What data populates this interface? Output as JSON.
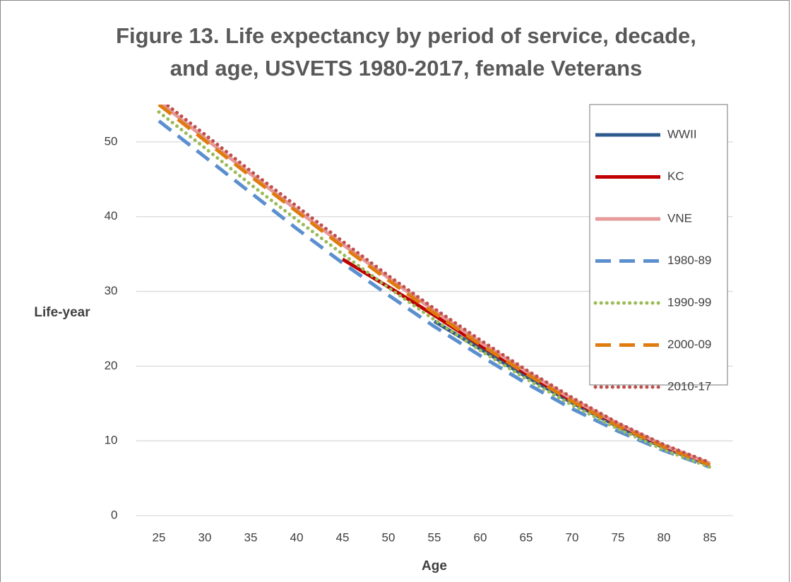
{
  "chart_data": {
    "type": "line",
    "title": [
      "Figure 13. Life expectancy by period of service, decade,",
      "and age, USVETS 1980-2017, female Veterans"
    ],
    "x_label": "Age",
    "y_label": "Life-year",
    "categories": [
      "25",
      "30",
      "35",
      "40",
      "45",
      "50",
      "55",
      "60",
      "65",
      "70",
      "75",
      "80",
      "85"
    ],
    "ylim": [
      0,
      55
    ],
    "yticks": [
      0,
      10,
      20,
      30,
      40,
      50
    ],
    "grid": true,
    "legend": "upper right",
    "series": [
      {
        "name": "WWII",
        "color": "#2e5a8c",
        "dash": "solid",
        "values": [
          null,
          null,
          null,
          null,
          null,
          null,
          26.0,
          22.3,
          18.6,
          15.1,
          11.9,
          9.1,
          6.7
        ]
      },
      {
        "name": "KC",
        "color": "#c00000",
        "dash": "solid",
        "values": [
          null,
          null,
          null,
          null,
          34.3,
          30.6,
          26.8,
          22.8,
          19.0,
          15.4,
          12.2,
          9.3,
          6.8
        ]
      },
      {
        "name": "VNE",
        "color": "#e69a9a",
        "dash": "solid",
        "values": [
          55.4,
          50.5,
          45.7,
          40.9,
          36.3,
          31.8,
          27.4,
          23.2,
          19.3,
          15.6,
          12.3,
          9.4,
          7.0
        ]
      },
      {
        "name": "1980-89",
        "color": "#5b8fce",
        "dash": "dashed",
        "values": [
          52.8,
          48.0,
          43.2,
          38.4,
          33.8,
          29.5,
          25.3,
          21.4,
          17.7,
          14.3,
          11.3,
          8.7,
          6.5
        ]
      },
      {
        "name": "1990-99",
        "color": "#9bbb59",
        "dash": "dotted",
        "values": [
          54.0,
          49.2,
          44.3,
          39.6,
          35.0,
          30.5,
          26.2,
          22.1,
          18.3,
          14.8,
          11.6,
          8.8,
          6.5
        ]
      },
      {
        "name": "2000-09",
        "color": "#e07b10",
        "dash": "dashed",
        "values": [
          55.0,
          50.2,
          45.4,
          40.7,
          36.0,
          31.5,
          27.1,
          22.9,
          19.0,
          15.3,
          12.0,
          9.2,
          6.8
        ]
      },
      {
        "name": "2010-17",
        "color": "#c0504d",
        "dash": "dotted",
        "values": [
          55.8,
          51.0,
          46.1,
          41.4,
          36.7,
          32.1,
          27.7,
          23.5,
          19.5,
          15.8,
          12.4,
          9.5,
          7.1
        ]
      }
    ]
  }
}
